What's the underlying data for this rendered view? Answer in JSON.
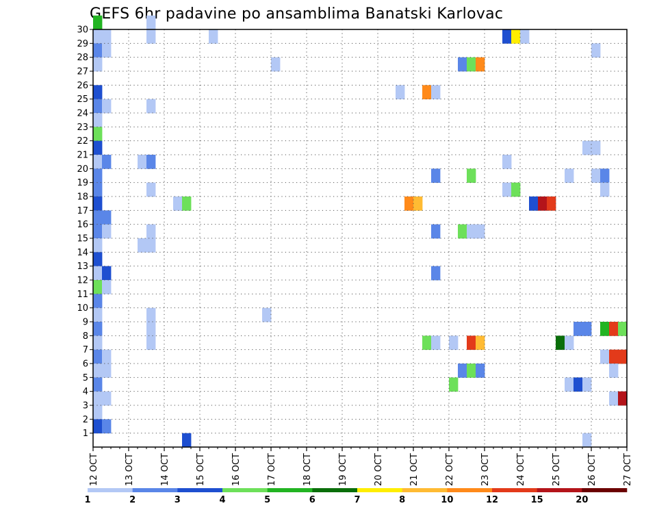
{
  "chart_data": {
    "type": "heatmap",
    "title": "GEFS 6hr padavine po ansamblima Banatski Karlovac",
    "xlabel": "",
    "ylabel": "",
    "x_ticks": [
      "12 OCT",
      "13 OCT",
      "14 OCT",
      "15 OCT",
      "16 OCT",
      "17 OCT",
      "18 OCT",
      "19 OCT",
      "20 OCT",
      "21 OCT",
      "22 OCT",
      "23 OCT",
      "24 OCT",
      "25 OCT",
      "26 OCT",
      "27 OCT"
    ],
    "xlim": [
      0,
      15
    ],
    "y_ticks": [
      1,
      2,
      3,
      4,
      5,
      6,
      7,
      8,
      9,
      10,
      11,
      12,
      13,
      14,
      15,
      16,
      17,
      18,
      19,
      20,
      21,
      22,
      23,
      24,
      25,
      26,
      27,
      28,
      29,
      30
    ],
    "ylim": [
      0,
      30
    ],
    "grid": true,
    "legend": {
      "placement": "bottom",
      "labels": [
        "1",
        "2",
        "3",
        "4",
        "5",
        "6",
        "7",
        "8",
        "10",
        "12",
        "15",
        "20"
      ],
      "colors": [
        "#b3c8f5",
        "#5a86e8",
        "#1e4fd0",
        "#6de05a",
        "#22b422",
        "#0a6e0a",
        "#ffee00",
        "#ffbb33",
        "#ff8a1a",
        "#e33a1a",
        "#b4141a",
        "#6b0000"
      ]
    },
    "cells": [
      [
        0,
        29,
        "#22b422"
      ],
      [
        0,
        28,
        "#b3c8f5"
      ],
      [
        0,
        27,
        "#5a86e8"
      ],
      [
        0,
        26,
        "#b3c8f5"
      ],
      [
        0,
        24,
        "#1e4fd0"
      ],
      [
        0,
        23,
        "#5a86e8"
      ],
      [
        0,
        22,
        "#b3c8f5"
      ],
      [
        0,
        21,
        "#6de05a"
      ],
      [
        0,
        20,
        "#1e4fd0"
      ],
      [
        0,
        19,
        "#b3c8f5"
      ],
      [
        0,
        18,
        "#5a86e8"
      ],
      [
        0,
        17,
        "#5a86e8"
      ],
      [
        0,
        16,
        "#1e4fd0"
      ],
      [
        0,
        15,
        "#5a86e8"
      ],
      [
        0,
        14,
        "#5a86e8"
      ],
      [
        0,
        13,
        "#b3c8f5"
      ],
      [
        0,
        12,
        "#1e4fd0"
      ],
      [
        0,
        11,
        "#b3c8f5"
      ],
      [
        0,
        10,
        "#6de05a"
      ],
      [
        0,
        9,
        "#5a86e8"
      ],
      [
        0,
        8,
        "#b3c8f5"
      ],
      [
        0,
        7,
        "#5a86e8"
      ],
      [
        0,
        6,
        "#b3c8f5"
      ],
      [
        0,
        5,
        "#5a86e8"
      ],
      [
        0,
        4,
        "#b3c8f5"
      ],
      [
        0,
        3,
        "#5a86e8"
      ],
      [
        0,
        2,
        "#b3c8f5"
      ],
      [
        0,
        1,
        "#b3c8f5"
      ],
      [
        0,
        0,
        "#1e4fd0"
      ],
      [
        1,
        28,
        "#b3c8f5"
      ],
      [
        1,
        27,
        "#b3c8f5"
      ],
      [
        1,
        23,
        "#b3c8f5"
      ],
      [
        1,
        19,
        "#5a86e8"
      ],
      [
        1,
        15,
        "#5a86e8"
      ],
      [
        1,
        14,
        "#b3c8f5"
      ],
      [
        1,
        11,
        "#1e4fd0"
      ],
      [
        1,
        10,
        "#b3c8f5"
      ],
      [
        1,
        5,
        "#b3c8f5"
      ],
      [
        1,
        4,
        "#b3c8f5"
      ],
      [
        1,
        2,
        "#b3c8f5"
      ],
      [
        1,
        0,
        "#5a86e8"
      ],
      [
        5,
        19,
        "#b3c8f5"
      ],
      [
        5,
        13,
        "#b3c8f5"
      ],
      [
        6,
        29,
        "#b3c8f5"
      ],
      [
        6,
        28,
        "#b3c8f5"
      ],
      [
        6,
        23,
        "#b3c8f5"
      ],
      [
        6,
        19,
        "#5a86e8"
      ],
      [
        6,
        17,
        "#b3c8f5"
      ],
      [
        6,
        14,
        "#b3c8f5"
      ],
      [
        6,
        13,
        "#b3c8f5"
      ],
      [
        6,
        8,
        "#b3c8f5"
      ],
      [
        6,
        7,
        "#b3c8f5"
      ],
      [
        6,
        6,
        "#b3c8f5"
      ],
      [
        9,
        16,
        "#b3c8f5"
      ],
      [
        10,
        16,
        "#6de05a"
      ],
      [
        10,
        -1,
        "#1e4fd0"
      ],
      [
        13,
        28,
        "#b3c8f5"
      ],
      [
        20,
        26,
        "#b3c8f5"
      ],
      [
        19,
        8,
        "#b3c8f5"
      ],
      [
        34,
        24,
        "#b3c8f5"
      ],
      [
        35,
        16,
        "#ff8a1a"
      ],
      [
        36,
        16,
        "#ffbb33"
      ],
      [
        37,
        24,
        "#ff8a1a"
      ],
      [
        38,
        24,
        "#b3c8f5"
      ],
      [
        37,
        6,
        "#6de05a"
      ],
      [
        38,
        6,
        "#b3c8f5"
      ],
      [
        38,
        18,
        "#5a86e8"
      ],
      [
        38,
        14,
        "#5a86e8"
      ],
      [
        38,
        11,
        "#5a86e8"
      ],
      [
        40,
        6,
        "#b3c8f5"
      ],
      [
        41,
        26,
        "#5a86e8"
      ],
      [
        42,
        26,
        "#6de05a"
      ],
      [
        43,
        26,
        "#ff8a1a"
      ],
      [
        41,
        14,
        "#6de05a"
      ],
      [
        42,
        14,
        "#b3c8f5"
      ],
      [
        43,
        14,
        "#b3c8f5"
      ],
      [
        41,
        4,
        "#5a86e8"
      ],
      [
        42,
        4,
        "#6de05a"
      ],
      [
        43,
        4,
        "#5a86e8"
      ],
      [
        40,
        3,
        "#6de05a"
      ],
      [
        42,
        6,
        "#e33a1a"
      ],
      [
        43,
        6,
        "#ffbb33"
      ],
      [
        42,
        18,
        "#6de05a"
      ],
      [
        46,
        28,
        "#1e4fd0"
      ],
      [
        47,
        28,
        "#ffee00"
      ],
      [
        48,
        28,
        "#b3c8f5"
      ],
      [
        46,
        19,
        "#b3c8f5"
      ],
      [
        46,
        17,
        "#b3c8f5"
      ],
      [
        47,
        17,
        "#6de05a"
      ],
      [
        49,
        16,
        "#1e4fd0"
      ],
      [
        50,
        16,
        "#b4141a"
      ],
      [
        51,
        16,
        "#e33a1a"
      ],
      [
        52,
        6,
        "#0a6e0a"
      ],
      [
        53,
        6,
        "#b3c8f5"
      ],
      [
        53,
        18,
        "#b3c8f5"
      ],
      [
        54,
        7,
        "#5a86e8"
      ],
      [
        55,
        7,
        "#5a86e8"
      ],
      [
        53,
        3,
        "#b3c8f5"
      ],
      [
        54,
        3,
        "#1e4fd0"
      ],
      [
        55,
        3,
        "#b3c8f5"
      ],
      [
        55,
        -1,
        "#b3c8f5"
      ],
      [
        55,
        20,
        "#b3c8f5"
      ],
      [
        56,
        20,
        "#b3c8f5"
      ],
      [
        56,
        27,
        "#b3c8f5"
      ],
      [
        56,
        18,
        "#b3c8f5"
      ],
      [
        57,
        18,
        "#5a86e8"
      ],
      [
        57,
        17,
        "#b3c8f5"
      ],
      [
        57,
        7,
        "#22b422"
      ],
      [
        58,
        7,
        "#e33a1a"
      ],
      [
        59,
        7,
        "#6de05a"
      ],
      [
        57,
        5,
        "#b3c8f5"
      ],
      [
        58,
        5,
        "#e33a1a"
      ],
      [
        59,
        5,
        "#e33a1a"
      ],
      [
        58,
        4,
        "#b3c8f5"
      ],
      [
        58,
        2,
        "#b3c8f5"
      ],
      [
        59,
        2,
        "#b4141a"
      ]
    ]
  }
}
